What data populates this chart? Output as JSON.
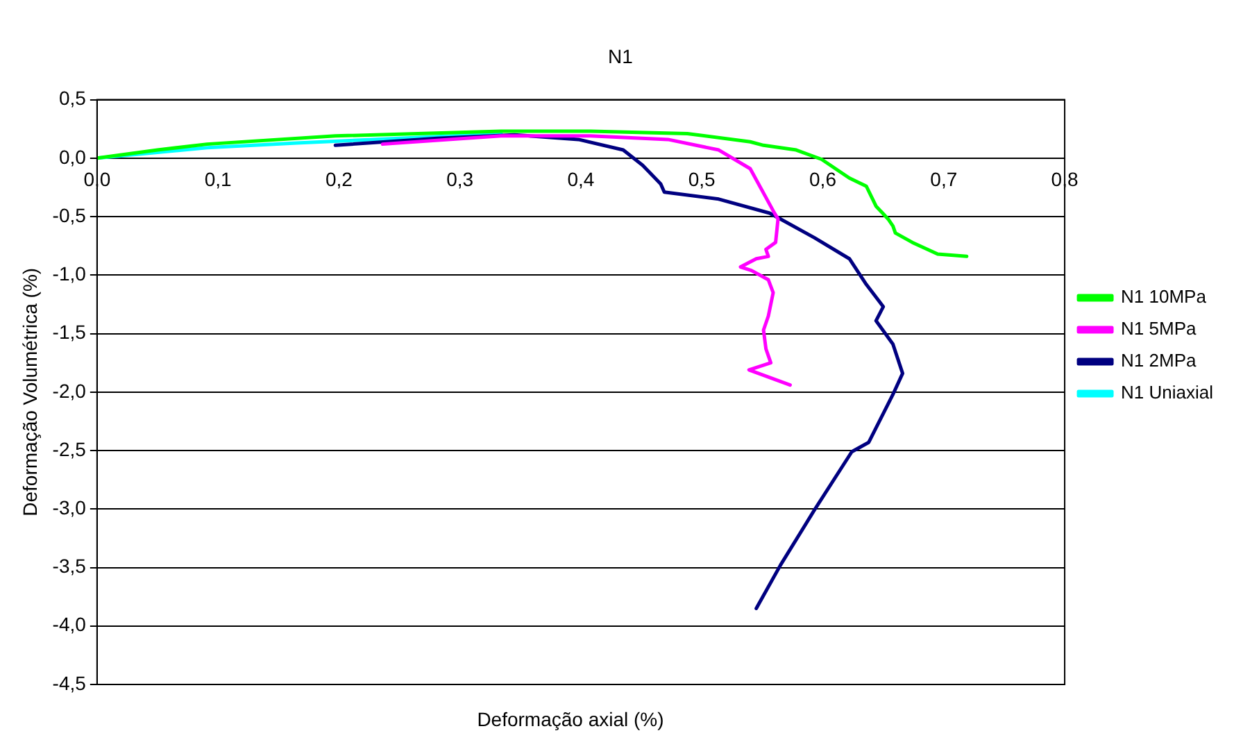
{
  "chart_data": {
    "type": "line",
    "title": "N1",
    "xlabel": "Deformação axial (%)",
    "ylabel": "Deformação Volumétrica (%)",
    "xlim": [
      0,
      0.8
    ],
    "xticks": [
      {
        "value": 0,
        "label": "0,0"
      },
      {
        "value": 0.1,
        "label": "0,1"
      },
      {
        "value": 0.2,
        "label": "0,2"
      },
      {
        "value": 0.3,
        "label": "0,3"
      },
      {
        "value": 0.4,
        "label": "0,4"
      },
      {
        "value": 0.5,
        "label": "0,5"
      },
      {
        "value": 0.6,
        "label": "0,6"
      },
      {
        "value": 0.7,
        "label": "0,7"
      },
      {
        "value": 0.8,
        "label": "0,8"
      }
    ],
    "ylim": [
      -4.5,
      0.5
    ],
    "yticks": [
      {
        "value": -4.5,
        "label": "-4,5"
      },
      {
        "value": -4,
        "label": "-4,0"
      },
      {
        "value": -3.5,
        "label": "-3,5"
      },
      {
        "value": -3,
        "label": "-3,0"
      },
      {
        "value": -2.5,
        "label": "-2,5"
      },
      {
        "value": -2,
        "label": "-2,0"
      },
      {
        "value": -1.5,
        "label": "-1,5"
      },
      {
        "value": -1,
        "label": "-1,0"
      },
      {
        "value": -0.5,
        "label": "-0,5"
      },
      {
        "value": 0,
        "label": "0,0"
      },
      {
        "value": 0.5,
        "label": "0,5"
      }
    ],
    "grid": "y",
    "legend": "right",
    "marker": "none",
    "line_style": "solid",
    "series": [
      {
        "name": "N1 10MPa",
        "color": "#00ff00",
        "x": [
          0,
          0.05,
          0.091,
          0.197,
          0.334,
          0.408,
          0.488,
          0.54,
          0.551,
          0.578,
          0.599,
          0.622,
          0.636,
          0.644,
          0.654,
          0.658,
          0.66,
          0.674,
          0.695,
          0.719
        ],
        "values": [
          0,
          0.07,
          0.12,
          0.19,
          0.23,
          0.23,
          0.21,
          0.14,
          0.11,
          0.07,
          -0.01,
          -0.17,
          -0.24,
          -0.41,
          -0.52,
          -0.58,
          -0.64,
          -0.72,
          -0.82,
          -0.84
        ]
      },
      {
        "name": "N1 5MPa",
        "color": "#ff00ff",
        "x": [
          0.236,
          0.334,
          0.408,
          0.472,
          0.514,
          0.54,
          0.559,
          0.563,
          0.561,
          0.553,
          0.555,
          0.545,
          0.532,
          0.541,
          0.555,
          0.559,
          0.555,
          0.551,
          0.553,
          0.557,
          0.539,
          0.573
        ],
        "values": [
          0.12,
          0.19,
          0.19,
          0.16,
          0.07,
          -0.09,
          -0.45,
          -0.52,
          -0.72,
          -0.78,
          -0.84,
          -0.86,
          -0.93,
          -0.96,
          -1.04,
          -1.15,
          -1.35,
          -1.47,
          -1.63,
          -1.75,
          -1.81,
          -1.94
        ]
      },
      {
        "name": "N1 2MPa",
        "color": "#000080",
        "x": [
          0.197,
          0.281,
          0.345,
          0.398,
          0.435,
          0.451,
          0.466,
          0.469,
          0.514,
          0.556,
          0.565,
          0.593,
          0.622,
          0.636,
          0.65,
          0.644,
          0.658,
          0.666,
          0.658,
          0.638,
          0.624,
          0.593,
          0.565,
          0.545
        ],
        "values": [
          0.11,
          0.17,
          0.2,
          0.16,
          0.07,
          -0.06,
          -0.22,
          -0.29,
          -0.35,
          -0.47,
          -0.52,
          -0.68,
          -0.86,
          -1.08,
          -1.27,
          -1.39,
          -1.59,
          -1.84,
          -2.02,
          -2.43,
          -2.51,
          -3.01,
          -3.48,
          -3.85
        ]
      },
      {
        "name": "N1 Uniaxial",
        "color": "#00ffff",
        "x": [
          0,
          0.05,
          0.091,
          0.165,
          0.25,
          0.334
        ],
        "values": [
          0,
          0.05,
          0.09,
          0.13,
          0.17,
          0.21
        ]
      }
    ]
  }
}
